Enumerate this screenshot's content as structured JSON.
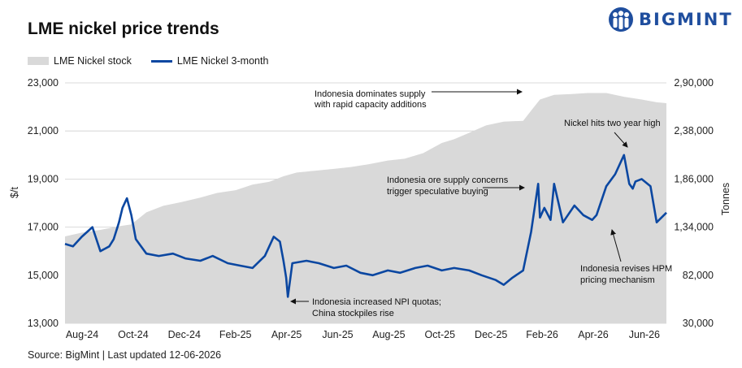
{
  "header": {
    "title": "LME nickel price trends",
    "brand": "BIGMINT",
    "brand_color": "#1f4e9e",
    "brand_icon": "people-group-icon"
  },
  "footer": {
    "source": "Source: BigMint | Last updated 12-06-2026"
  },
  "chart_data": {
    "type": "line",
    "title": "LME nickel price trends",
    "legend_position": "top-left",
    "grid": true,
    "x_range": [
      "2024-08-01",
      "2026-06-12"
    ],
    "x_tick_labels": [
      "Aug-24",
      "Oct-24",
      "Dec-24",
      "Feb-25",
      "Apr-25",
      "Jun-25",
      "Aug-25",
      "Oct-25",
      "Dec-25",
      "Feb-26",
      "Apr-26",
      "Jun-26"
    ],
    "y_left": {
      "label": "$/t",
      "range": [
        13000,
        23000
      ],
      "tick_labels": [
        "13,000",
        "15,000",
        "17,000",
        "19,000",
        "21,000",
        "23,000"
      ]
    },
    "y_right": {
      "label": "Tonnes",
      "range": [
        30000,
        290000
      ],
      "tick_labels": [
        "30,000",
        "82,000",
        "1,34,000",
        "1,86,000",
        "2,38,000",
        "2,90,000"
      ]
    },
    "series": [
      {
        "name": "LME Nickel stock",
        "kind": "area",
        "axis": "right",
        "color": "#d9d9d9",
        "dates": [
          "2024-08-01",
          "2024-08-20",
          "2024-09-10",
          "2024-10-01",
          "2024-10-15",
          "2024-11-01",
          "2024-11-20",
          "2024-12-10",
          "2025-01-01",
          "2025-01-20",
          "2025-02-10",
          "2025-03-01",
          "2025-03-20",
          "2025-04-05",
          "2025-04-20",
          "2025-05-10",
          "2025-06-01",
          "2025-06-20",
          "2025-07-10",
          "2025-08-01",
          "2025-08-20",
          "2025-09-10",
          "2025-10-01",
          "2025-10-15",
          "2025-11-01",
          "2025-11-20",
          "2025-12-10",
          "2026-01-01",
          "2026-01-10",
          "2026-01-20",
          "2026-02-05",
          "2026-02-25",
          "2026-03-15",
          "2026-04-05",
          "2026-04-25",
          "2026-05-15",
          "2026-06-01",
          "2026-06-12"
        ],
        "values": [
          124000,
          128000,
          131000,
          135000,
          137000,
          150000,
          157000,
          161000,
          166000,
          171000,
          174000,
          180000,
          183000,
          189000,
          193000,
          195000,
          197000,
          199000,
          202000,
          206000,
          208000,
          214000,
          225000,
          229000,
          236000,
          244000,
          248000,
          249000,
          260000,
          272000,
          277000,
          278000,
          279000,
          279000,
          275000,
          272000,
          269000,
          268000
        ]
      },
      {
        "name": "LME Nickel 3-month",
        "kind": "line",
        "axis": "left",
        "color": "#0b47a1",
        "dates": [
          "2024-08-01",
          "2024-08-10",
          "2024-08-20",
          "2024-09-01",
          "2024-09-10",
          "2024-09-20",
          "2024-09-25",
          "2024-10-01",
          "2024-10-05",
          "2024-10-10",
          "2024-10-15",
          "2024-10-20",
          "2024-11-01",
          "2024-11-15",
          "2024-12-01",
          "2024-12-15",
          "2025-01-01",
          "2025-01-15",
          "2025-02-01",
          "2025-02-15",
          "2025-03-01",
          "2025-03-15",
          "2025-03-25",
          "2025-04-01",
          "2025-04-05",
          "2025-04-08",
          "2025-04-10",
          "2025-04-15",
          "2025-05-01",
          "2025-05-15",
          "2025-06-01",
          "2025-06-15",
          "2025-07-01",
          "2025-07-15",
          "2025-08-01",
          "2025-08-15",
          "2025-09-01",
          "2025-09-15",
          "2025-10-01",
          "2025-10-15",
          "2025-11-01",
          "2025-11-15",
          "2025-12-01",
          "2025-12-10",
          "2025-12-20",
          "2026-01-01",
          "2026-01-10",
          "2026-01-18",
          "2026-01-20",
          "2026-01-25",
          "2026-02-01",
          "2026-02-05",
          "2026-02-15",
          "2026-02-28",
          "2026-03-10",
          "2026-03-20",
          "2026-03-25",
          "2026-04-05",
          "2026-04-15",
          "2026-04-25",
          "2026-05-01",
          "2026-05-05",
          "2026-05-08",
          "2026-05-15",
          "2026-05-25",
          "2026-06-01",
          "2026-06-12"
        ],
        "values": [
          16300,
          16200,
          16600,
          17000,
          16000,
          16200,
          16500,
          17200,
          17800,
          18200,
          17500,
          16500,
          15900,
          15800,
          15900,
          15700,
          15600,
          15800,
          15500,
          15400,
          15300,
          15800,
          16600,
          16400,
          15600,
          14900,
          14100,
          15500,
          15600,
          15500,
          15300,
          15400,
          15100,
          15000,
          15200,
          15100,
          15300,
          15400,
          15200,
          15300,
          15200,
          15000,
          14800,
          14600,
          14900,
          15200,
          16800,
          18800,
          17400,
          17800,
          17300,
          18800,
          17200,
          17900,
          17500,
          17300,
          17500,
          18700,
          19200,
          20000,
          18800,
          18600,
          18900,
          19000,
          18700,
          17200,
          17600
        ]
      }
    ],
    "annotations": [
      {
        "id": "anno-supply",
        "lines": [
          "Indonesia dominates supply",
          "with rapid capacity additions"
        ]
      },
      {
        "id": "anno-twoyear",
        "lines": [
          "Nickel hits two year high"
        ]
      },
      {
        "id": "anno-ore",
        "lines": [
          "Indonesia ore supply concerns",
          "trigger speculative buying"
        ]
      },
      {
        "id": "anno-npi",
        "lines": [
          "Indonesia increased NPI quotas;",
          "China stockpiles rise"
        ]
      },
      {
        "id": "anno-hpm",
        "lines": [
          "Indonesia revises HPM",
          "pricing mechanism"
        ]
      }
    ]
  }
}
